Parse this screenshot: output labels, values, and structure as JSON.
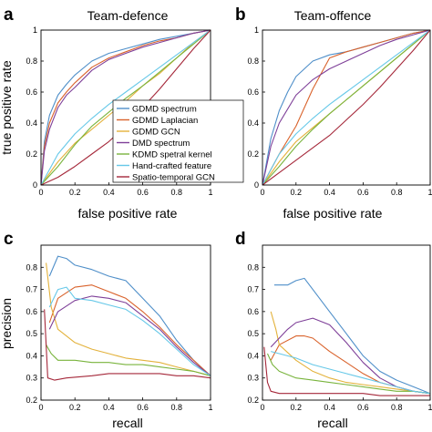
{
  "chart_data": [
    {
      "panel": "a",
      "type": "line",
      "title": "Team-defence",
      "xlabel": "false positive rate",
      "ylabel": "true positive rate",
      "xlim": [
        0,
        1
      ],
      "ylim": [
        0,
        1
      ],
      "xticks": [
        "0",
        "0.2",
        "0.4",
        "0.6",
        "0.8",
        "1"
      ],
      "yticks": [
        "0",
        "0.2",
        "0.4",
        "0.6",
        "0.8",
        "1"
      ],
      "legend_position": "lower-right",
      "series": [
        {
          "name": "GDMD spectrum",
          "color": "#4f8fc9",
          "x": [
            0,
            0.02,
            0.05,
            0.1,
            0.15,
            0.2,
            0.3,
            0.4,
            0.5,
            0.6,
            0.7,
            0.8,
            0.9,
            1
          ],
          "y": [
            0,
            0.28,
            0.45,
            0.58,
            0.65,
            0.71,
            0.8,
            0.85,
            0.88,
            0.91,
            0.94,
            0.96,
            0.98,
            1
          ]
        },
        {
          "name": "GDMD Laplacian",
          "color": "#d9622b",
          "x": [
            0,
            0.02,
            0.05,
            0.1,
            0.15,
            0.2,
            0.3,
            0.4,
            0.5,
            0.6,
            0.7,
            0.8,
            0.9,
            1
          ],
          "y": [
            0,
            0.25,
            0.4,
            0.53,
            0.6,
            0.66,
            0.76,
            0.82,
            0.86,
            0.9,
            0.93,
            0.95,
            0.98,
            1
          ]
        },
        {
          "name": "GDMD GCN",
          "color": "#e3b23c",
          "x": [
            0,
            0.1,
            0.2,
            0.3,
            0.4,
            0.5,
            0.6,
            0.7,
            0.8,
            0.9,
            1
          ],
          "y": [
            0,
            0.15,
            0.27,
            0.36,
            0.45,
            0.54,
            0.64,
            0.72,
            0.82,
            0.92,
            1
          ]
        },
        {
          "name": "DMD spectrum",
          "color": "#7e3f98",
          "x": [
            0,
            0.02,
            0.05,
            0.1,
            0.15,
            0.2,
            0.3,
            0.4,
            0.5,
            0.6,
            0.7,
            0.8,
            0.9,
            1
          ],
          "y": [
            0,
            0.22,
            0.36,
            0.5,
            0.58,
            0.63,
            0.74,
            0.81,
            0.85,
            0.89,
            0.92,
            0.95,
            0.98,
            1
          ]
        },
        {
          "name": "KDMD spetral kernel",
          "color": "#79b43d",
          "x": [
            0,
            0.1,
            0.2,
            0.3,
            0.4,
            0.5,
            0.6,
            0.7,
            0.8,
            0.9,
            1
          ],
          "y": [
            0,
            0.12,
            0.26,
            0.38,
            0.47,
            0.56,
            0.64,
            0.73,
            0.82,
            0.91,
            1
          ]
        },
        {
          "name": "Hand-crafted feature",
          "color": "#66c8e8",
          "x": [
            0,
            0.1,
            0.2,
            0.3,
            0.4,
            0.5,
            0.6,
            0.7,
            0.8,
            0.9,
            1
          ],
          "y": [
            0,
            0.2,
            0.33,
            0.43,
            0.52,
            0.6,
            0.68,
            0.76,
            0.84,
            0.92,
            1
          ]
        },
        {
          "name": "Spatio-temporal GCN",
          "color": "#a5283a",
          "x": [
            0,
            0.1,
            0.2,
            0.3,
            0.4,
            0.5,
            0.6,
            0.7,
            0.8,
            0.9,
            1
          ],
          "y": [
            0,
            0.05,
            0.12,
            0.2,
            0.28,
            0.38,
            0.5,
            0.62,
            0.75,
            0.88,
            1
          ]
        }
      ]
    },
    {
      "panel": "b",
      "type": "line",
      "title": "Team-offence",
      "xlabel": "false positive rate",
      "ylabel": "",
      "xlim": [
        0,
        1
      ],
      "ylim": [
        0,
        1
      ],
      "xticks": [
        "0",
        "0.2",
        "0.4",
        "0.6",
        "0.8",
        "1"
      ],
      "yticks": [
        "0",
        "0.2",
        "0.4",
        "0.6",
        "0.8",
        "1"
      ],
      "series": [
        {
          "name": "GDMD spectrum",
          "color": "#4f8fc9",
          "x": [
            0,
            0.05,
            0.1,
            0.15,
            0.2,
            0.3,
            0.4,
            0.5,
            0.6,
            0.7,
            0.8,
            0.9,
            1
          ],
          "y": [
            0,
            0.3,
            0.48,
            0.6,
            0.7,
            0.8,
            0.84,
            0.86,
            0.89,
            0.92,
            0.95,
            0.98,
            1
          ]
        },
        {
          "name": "GDMD Laplacian",
          "color": "#d9622b",
          "x": [
            0,
            0.1,
            0.2,
            0.3,
            0.4,
            0.5,
            0.6,
            0.7,
            0.8,
            0.9,
            1
          ],
          "y": [
            0,
            0.2,
            0.38,
            0.62,
            0.82,
            0.86,
            0.89,
            0.92,
            0.95,
            0.98,
            1
          ]
        },
        {
          "name": "GDMD GCN",
          "color": "#e3b23c",
          "x": [
            0,
            0.1,
            0.2,
            0.3,
            0.4,
            0.5,
            0.6,
            0.7,
            0.8,
            0.9,
            1
          ],
          "y": [
            0,
            0.15,
            0.28,
            0.37,
            0.46,
            0.55,
            0.64,
            0.73,
            0.82,
            0.91,
            1
          ]
        },
        {
          "name": "DMD spectrum",
          "color": "#7e3f98",
          "x": [
            0,
            0.05,
            0.1,
            0.2,
            0.3,
            0.4,
            0.5,
            0.6,
            0.7,
            0.8,
            0.9,
            1
          ],
          "y": [
            0,
            0.25,
            0.4,
            0.58,
            0.68,
            0.75,
            0.8,
            0.85,
            0.9,
            0.94,
            0.97,
            1
          ]
        },
        {
          "name": "KDMD spetral kernel",
          "color": "#79b43d",
          "x": [
            0,
            0.1,
            0.2,
            0.3,
            0.4,
            0.5,
            0.6,
            0.7,
            0.8,
            0.9,
            1
          ],
          "y": [
            0,
            0.12,
            0.25,
            0.36,
            0.46,
            0.55,
            0.64,
            0.73,
            0.82,
            0.91,
            1
          ]
        },
        {
          "name": "Hand-crafted feature",
          "color": "#66c8e8",
          "x": [
            0,
            0.1,
            0.2,
            0.3,
            0.4,
            0.5,
            0.6,
            0.7,
            0.8,
            0.9,
            1
          ],
          "y": [
            0,
            0.2,
            0.33,
            0.43,
            0.52,
            0.6,
            0.68,
            0.76,
            0.84,
            0.92,
            1
          ]
        },
        {
          "name": "Spatio-temporal GCN",
          "color": "#a5283a",
          "x": [
            0,
            0.1,
            0.2,
            0.3,
            0.4,
            0.5,
            0.6,
            0.7,
            0.8,
            0.9,
            1
          ],
          "y": [
            0,
            0.08,
            0.16,
            0.24,
            0.32,
            0.42,
            0.52,
            0.63,
            0.75,
            0.87,
            1
          ]
        }
      ]
    },
    {
      "panel": "c",
      "type": "line",
      "title": "",
      "xlabel": "recall",
      "ylabel": "precision",
      "xlim": [
        0,
        1
      ],
      "ylim": [
        0.2,
        0.9
      ],
      "xticks": [
        "0",
        "0.2",
        "0.4",
        "0.6",
        "0.8",
        "1"
      ],
      "yticks": [
        "0.2",
        "0.3",
        "0.4",
        "0.5",
        "0.6",
        "0.7",
        "0.8"
      ],
      "series": [
        {
          "name": "GDMD spectrum",
          "color": "#4f8fc9",
          "x": [
            0.05,
            0.1,
            0.15,
            0.2,
            0.3,
            0.4,
            0.5,
            0.6,
            0.7,
            0.8,
            0.9,
            1
          ],
          "y": [
            0.76,
            0.85,
            0.84,
            0.81,
            0.79,
            0.76,
            0.74,
            0.66,
            0.58,
            0.47,
            0.38,
            0.31
          ]
        },
        {
          "name": "GDMD Laplacian",
          "color": "#d9622b",
          "x": [
            0.05,
            0.1,
            0.2,
            0.3,
            0.4,
            0.5,
            0.6,
            0.7,
            0.8,
            0.9,
            1
          ],
          "y": [
            0.55,
            0.66,
            0.71,
            0.72,
            0.69,
            0.66,
            0.6,
            0.53,
            0.45,
            0.38,
            0.31
          ]
        },
        {
          "name": "GDMD GCN",
          "color": "#e3b23c",
          "x": [
            0.03,
            0.06,
            0.1,
            0.2,
            0.3,
            0.4,
            0.5,
            0.6,
            0.7,
            0.8,
            0.9,
            1
          ],
          "y": [
            0.82,
            0.62,
            0.52,
            0.46,
            0.43,
            0.41,
            0.39,
            0.38,
            0.37,
            0.35,
            0.33,
            0.31
          ]
        },
        {
          "name": "DMD spectrum",
          "color": "#7e3f98",
          "x": [
            0.05,
            0.1,
            0.2,
            0.3,
            0.4,
            0.5,
            0.6,
            0.7,
            0.8,
            0.9,
            1
          ],
          "y": [
            0.52,
            0.6,
            0.65,
            0.67,
            0.66,
            0.64,
            0.58,
            0.52,
            0.44,
            0.37,
            0.31
          ]
        },
        {
          "name": "KDMD spetral kernel",
          "color": "#79b43d",
          "x": [
            0.03,
            0.06,
            0.1,
            0.2,
            0.3,
            0.4,
            0.5,
            0.6,
            0.7,
            0.8,
            0.9,
            1
          ],
          "y": [
            0.45,
            0.41,
            0.38,
            0.38,
            0.37,
            0.37,
            0.36,
            0.36,
            0.35,
            0.34,
            0.33,
            0.31
          ]
        },
        {
          "name": "Hand-crafted feature",
          "color": "#66c8e8",
          "x": [
            0.05,
            0.1,
            0.15,
            0.2,
            0.3,
            0.4,
            0.5,
            0.6,
            0.7,
            0.8,
            0.9,
            1
          ],
          "y": [
            0.62,
            0.7,
            0.71,
            0.66,
            0.65,
            0.63,
            0.61,
            0.56,
            0.5,
            0.43,
            0.36,
            0.31
          ]
        },
        {
          "name": "Spatio-temporal GCN",
          "color": "#a5283a",
          "x": [
            0.02,
            0.04,
            0.08,
            0.15,
            0.3,
            0.4,
            0.5,
            0.6,
            0.7,
            0.8,
            0.9,
            1
          ],
          "y": [
            0.61,
            0.3,
            0.29,
            0.3,
            0.31,
            0.32,
            0.32,
            0.32,
            0.32,
            0.31,
            0.31,
            0.3
          ]
        }
      ]
    },
    {
      "panel": "d",
      "type": "line",
      "title": "",
      "xlabel": "recall",
      "ylabel": "",
      "xlim": [
        0,
        1
      ],
      "ylim": [
        0.2,
        0.9
      ],
      "xticks": [
        "0",
        "0.2",
        "0.4",
        "0.6",
        "0.8",
        "1"
      ],
      "yticks": [
        "0.2",
        "0.3",
        "0.4",
        "0.5",
        "0.6",
        "0.7",
        "0.8"
      ],
      "series": [
        {
          "name": "GDMD spectrum",
          "color": "#4f8fc9",
          "x": [
            0.07,
            0.1,
            0.15,
            0.2,
            0.25,
            0.3,
            0.4,
            0.5,
            0.6,
            0.7,
            0.8,
            0.9,
            1
          ],
          "y": [
            0.72,
            0.72,
            0.72,
            0.74,
            0.75,
            0.7,
            0.6,
            0.5,
            0.4,
            0.33,
            0.29,
            0.26,
            0.23
          ]
        },
        {
          "name": "GDMD Laplacian",
          "color": "#d9622b",
          "x": [
            0.05,
            0.1,
            0.2,
            0.25,
            0.3,
            0.4,
            0.5,
            0.6,
            0.7,
            0.8,
            0.9,
            1
          ],
          "y": [
            0.38,
            0.45,
            0.49,
            0.49,
            0.48,
            0.42,
            0.37,
            0.32,
            0.28,
            0.26,
            0.24,
            0.23
          ]
        },
        {
          "name": "GDMD GCN",
          "color": "#e3b23c",
          "x": [
            0.05,
            0.08,
            0.1,
            0.2,
            0.3,
            0.4,
            0.5,
            0.6,
            0.7,
            0.8,
            0.9,
            1
          ],
          "y": [
            0.6,
            0.52,
            0.45,
            0.38,
            0.33,
            0.3,
            0.28,
            0.27,
            0.26,
            0.25,
            0.24,
            0.23
          ]
        },
        {
          "name": "DMD spectrum",
          "color": "#7e3f98",
          "x": [
            0.05,
            0.1,
            0.15,
            0.2,
            0.3,
            0.4,
            0.5,
            0.6,
            0.7,
            0.8,
            0.9,
            1
          ],
          "y": [
            0.44,
            0.48,
            0.52,
            0.55,
            0.57,
            0.54,
            0.46,
            0.37,
            0.3,
            0.26,
            0.24,
            0.23
          ]
        },
        {
          "name": "KDMD spetral kernel",
          "color": "#79b43d",
          "x": [
            0.03,
            0.06,
            0.1,
            0.2,
            0.3,
            0.4,
            0.5,
            0.6,
            0.7,
            0.8,
            0.9,
            1
          ],
          "y": [
            0.41,
            0.36,
            0.33,
            0.3,
            0.29,
            0.28,
            0.27,
            0.26,
            0.25,
            0.24,
            0.24,
            0.23
          ]
        },
        {
          "name": "Hand-crafted feature",
          "color": "#66c8e8",
          "x": [
            0.05,
            0.1,
            0.2,
            0.3,
            0.4,
            0.5,
            0.6,
            0.7,
            0.8,
            0.9,
            1
          ],
          "y": [
            0.42,
            0.41,
            0.39,
            0.36,
            0.34,
            0.32,
            0.3,
            0.28,
            0.26,
            0.24,
            0.23
          ]
        },
        {
          "name": "Spatio-temporal GCN",
          "color": "#a5283a",
          "x": [
            0.01,
            0.03,
            0.05,
            0.1,
            0.2,
            0.3,
            0.4,
            0.5,
            0.6,
            0.7,
            0.8,
            0.9,
            1
          ],
          "y": [
            0.44,
            0.28,
            0.24,
            0.23,
            0.23,
            0.23,
            0.23,
            0.23,
            0.23,
            0.22,
            0.22,
            0.22,
            0.22
          ]
        }
      ]
    }
  ]
}
